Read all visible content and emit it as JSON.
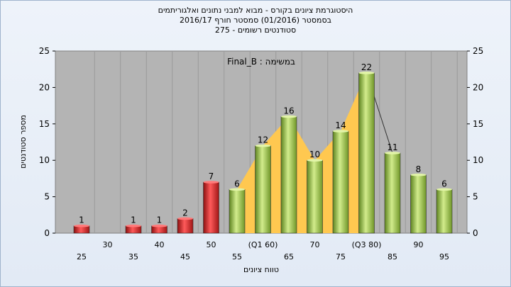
{
  "chart_data": {
    "type": "bar",
    "title_lines": [
      "היסטוגרמת ציונים בקורס - מבוא למבני נתונים ואלגוריתמים",
      "בסמסטר  (01/2016)  סמסטר חורף 2016/17",
      "סטודנטים רשומים - 275"
    ],
    "annotation": "במשימה : Final_B",
    "xlabel": "טווח ציונים",
    "ylabel": "מספר סטודנטים",
    "ylim": [
      0,
      25
    ],
    "yticks": [
      0,
      5,
      10,
      15,
      20,
      25
    ],
    "categories": [
      "25",
      "30",
      "35",
      "40",
      "45",
      "50",
      "55",
      "(Q1 60)",
      "65",
      "70",
      "75",
      "(Q3 80)",
      "85",
      "90",
      "95"
    ],
    "values": [
      1,
      0,
      1,
      1,
      2,
      7,
      6,
      12,
      16,
      10,
      14,
      22,
      11,
      8,
      6
    ],
    "value_labels": [
      "1",
      "",
      "1",
      "1",
      "2",
      "7",
      "6",
      "12",
      "16",
      "10",
      "14",
      "22",
      "11",
      "8",
      "6"
    ],
    "fail_color": "#d42020",
    "pass_color": "#94c040",
    "iqr_color": "#ffc850",
    "plot_bg": "#b4b4b4"
  }
}
